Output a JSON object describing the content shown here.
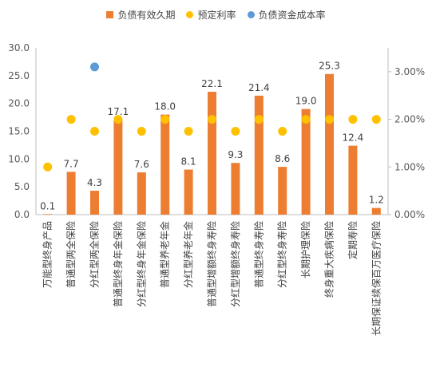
{
  "chart_data": {
    "type": "bar",
    "categories": [
      "万能型终身产品",
      "普通型两全保险",
      "分红型两全保险",
      "普通型终身年金保险",
      "分红型终身年金保险",
      "普通型养老年金",
      "分红型养老年金",
      "普通型增额终身寿险",
      "分红型增额终身寿险",
      "普通型终身寿险",
      "分红型终身寿险",
      "长期护理保险",
      "终身重大疾病保险",
      "定期寿险",
      "长期保证续保百万医疗保险"
    ],
    "series": [
      {
        "name": "负债有效久期",
        "type": "bar",
        "axis": "left",
        "color": "#ED7D31",
        "values": [
          0.1,
          7.7,
          4.3,
          17.1,
          7.6,
          18.0,
          8.1,
          22.1,
          9.3,
          21.4,
          8.6,
          19.0,
          25.3,
          12.4,
          1.2
        ],
        "labels": [
          "0.1",
          "7.7",
          "4.3",
          "17.1",
          "7.6",
          "18.0",
          "8.1",
          "22.1",
          "9.3",
          "21.4",
          "8.6",
          "19.0",
          "25.3",
          "12.4",
          "1.2"
        ]
      },
      {
        "name": "预定利率",
        "type": "scatter",
        "axis": "right",
        "color": "#FFC000",
        "values": [
          1.0,
          2.0,
          1.75,
          2.0,
          1.75,
          2.0,
          1.75,
          2.0,
          1.75,
          2.0,
          1.75,
          2.0,
          2.0,
          2.0,
          2.0
        ]
      },
      {
        "name": "负债资金成本率",
        "type": "scatter",
        "axis": "right",
        "color": "#5B9BD5",
        "points": [
          {
            "category": "分红型两全保险",
            "value": 3.1
          }
        ]
      }
    ],
    "ylim_left": [
      0,
      30
    ],
    "yticks_left": [
      "0.0",
      "5.0",
      "10.0",
      "15.0",
      "20.0",
      "25.0",
      "30.0"
    ],
    "ylim_right": [
      0,
      3.5
    ],
    "yticks_right": [
      "0.00%",
      "1.00%",
      "2.00%",
      "3.00%"
    ],
    "grid": false,
    "legend": "top"
  }
}
